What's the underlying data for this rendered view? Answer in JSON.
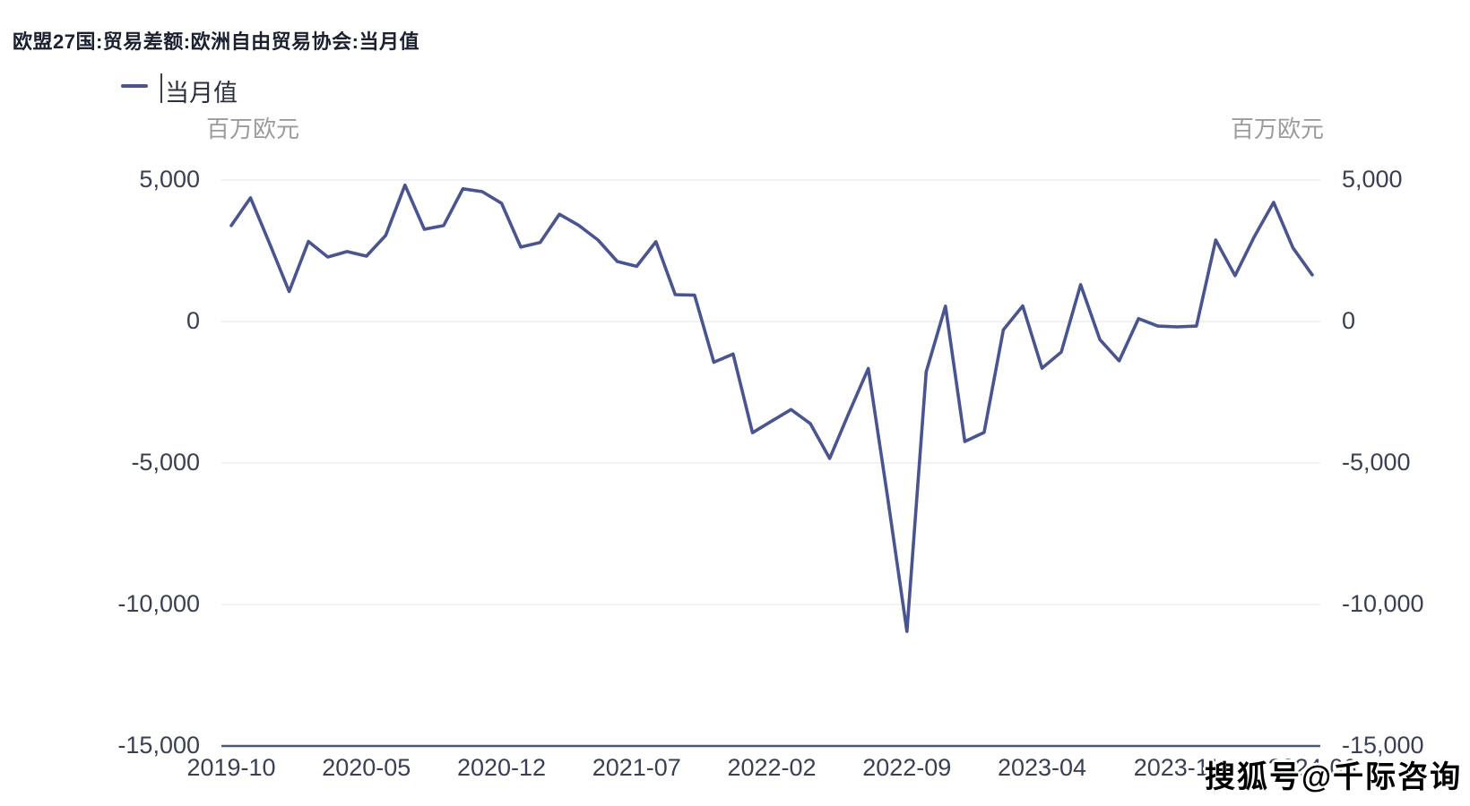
{
  "header": {
    "title": "欧盟27国:贸易差额:欧洲自由贸易协会:当月值"
  },
  "legend": {
    "items": [
      {
        "label": "当月值",
        "color": "#4A5590"
      }
    ]
  },
  "watermark": {
    "text": "搜狐号@千际咨询"
  },
  "colors": {
    "line": "#4A5590",
    "grid": "#ebebf3",
    "axis": "#4e587a",
    "tick_text": "#3a4053",
    "unit_text": "#9b9b9b",
    "title_text": "#1b2130",
    "watermark_text": "#000000"
  },
  "chart_data": {
    "type": "line",
    "title": "欧盟27国:贸易差额:欧洲自由贸易协会:当月值",
    "xlabel": "",
    "ylabel": "百万欧元",
    "grid": true,
    "legend_position": "top-left",
    "ylim": [
      -15000,
      5000
    ],
    "x": [
      "2019-10",
      "2019-11",
      "2019-12",
      "2020-01",
      "2020-02",
      "2020-03",
      "2020-04",
      "2020-05",
      "2020-06",
      "2020-07",
      "2020-08",
      "2020-09",
      "2020-10",
      "2020-11",
      "2020-12",
      "2021-01",
      "2021-02",
      "2021-03",
      "2021-04",
      "2021-05",
      "2021-06",
      "2021-07",
      "2021-08",
      "2021-09",
      "2021-10",
      "2021-11",
      "2021-12",
      "2022-01",
      "2022-02",
      "2022-03",
      "2022-04",
      "2022-05",
      "2022-06",
      "2022-07",
      "2022-08",
      "2022-09",
      "2022-10",
      "2022-11",
      "2022-12",
      "2023-01",
      "2023-02",
      "2023-03",
      "2023-04",
      "2023-05",
      "2023-06",
      "2023-07",
      "2023-08",
      "2023-09",
      "2023-10",
      "2023-11",
      "2023-12",
      "2024-01",
      "2024-02",
      "2024-03",
      "2024-04",
      "2024-05",
      "2024-06"
    ],
    "series": [
      {
        "name": "当月值",
        "color": "#4A5590",
        "values": [
          3390,
          4370,
          2730,
          1060,
          2830,
          2280,
          2470,
          2310,
          3040,
          4820,
          3260,
          3390,
          4690,
          4590,
          4180,
          2630,
          2790,
          3790,
          3400,
          2880,
          2120,
          1950,
          2820,
          950,
          930,
          -1440,
          -1150,
          -3930,
          -3520,
          -3110,
          -3610,
          -4840,
          -3230,
          -1660,
          -6200,
          -10950,
          -1780,
          540,
          -4240,
          -3920,
          -290,
          550,
          -1650,
          -1080,
          1300,
          -640,
          -1390,
          100,
          -160,
          -190,
          -160,
          2880,
          1620,
          3000,
          4210,
          2600,
          1650
        ]
      }
    ],
    "x_tick_every": 7,
    "x_tick_labels": [
      "2019-10",
      "2020-05",
      "2020-12",
      "2021-07",
      "2022-02",
      "2022-09",
      "2023-04",
      "2023-11",
      "2024-06"
    ],
    "y_axis": {
      "unit": "百万欧元",
      "min": -15000,
      "max": 5000,
      "step": 5000,
      "tick_values": [
        5000,
        0,
        -5000,
        -10000,
        -15000
      ],
      "tick_labels": [
        "5,000",
        "0",
        "-5,000",
        "-10,000",
        "-15,000"
      ]
    }
  }
}
